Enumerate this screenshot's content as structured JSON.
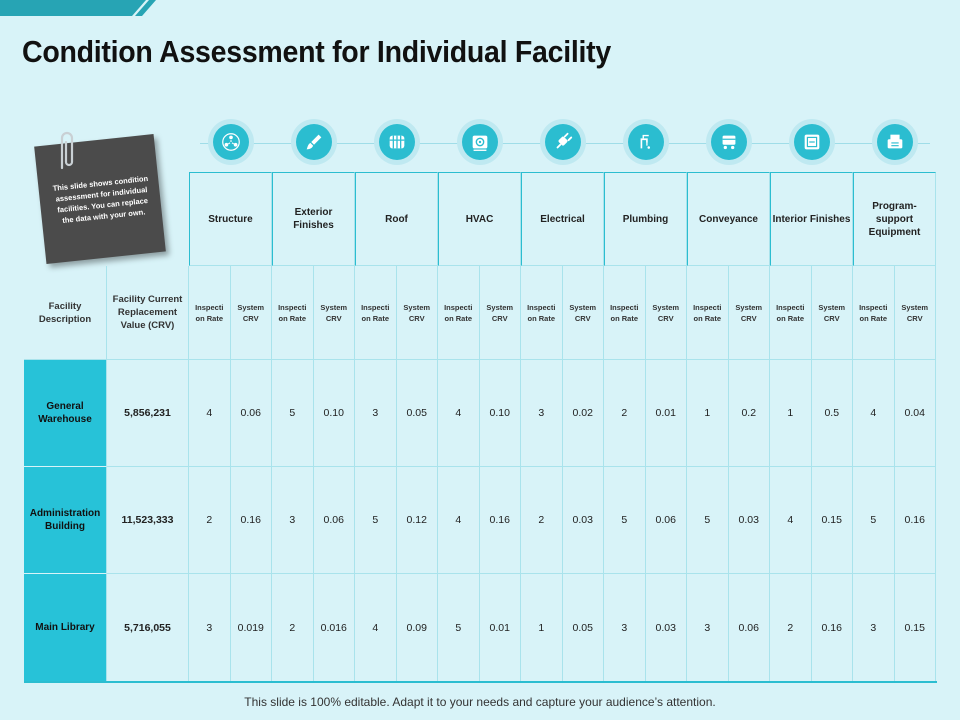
{
  "title": "Condition Assessment for Individual Facility",
  "note_text": "This slide shows condition assessment for individual facilities. You can replace the data with your own.",
  "footer": "This slide is 100% editable. Adapt it to your needs and capture your audience’s attention.",
  "colors": {
    "accent": "#27c2d8",
    "background": "#d8f3f8",
    "note": "#4b4b4b"
  },
  "categories": [
    {
      "label": "Structure",
      "icon": "people-network-icon"
    },
    {
      "label": "Exterior Finishes",
      "icon": "paint-brush-icon"
    },
    {
      "label": "Roof",
      "icon": "roof-tiles-icon"
    },
    {
      "label": "HVAC",
      "icon": "fan-unit-icon"
    },
    {
      "label": "Electrical",
      "icon": "electric-plug-icon"
    },
    {
      "label": "Plumbing",
      "icon": "water-pipe-icon"
    },
    {
      "label": "Conveyance",
      "icon": "conveyor-cart-icon"
    },
    {
      "label": "Interior Finishes",
      "icon": "interior-panel-icon"
    },
    {
      "label": "Program-support Equipment",
      "icon": "equipment-box-icon"
    }
  ],
  "left_headers": {
    "facility": "Facility Description",
    "crv": "Facility Current Replacement Value (CRV)"
  },
  "sub_headers": {
    "inspection": "Inspecti on Rate",
    "system": "System CRV"
  },
  "rows": [
    {
      "name": "General Warehouse",
      "crv": "5,856,231",
      "values": [
        "4",
        "0.06",
        "5",
        "0.10",
        "3",
        "0.05",
        "4",
        "0.10",
        "3",
        "0.02",
        "2",
        "0.01",
        "1",
        "0.2",
        "1",
        "0.5",
        "4",
        "0.04"
      ]
    },
    {
      "name": "Administration Building",
      "crv": "11,523,333",
      "values": [
        "2",
        "0.16",
        "3",
        "0.06",
        "5",
        "0.12",
        "4",
        "0.16",
        "2",
        "0.03",
        "5",
        "0.06",
        "5",
        "0.03",
        "4",
        "0.15",
        "5",
        "0.16"
      ]
    },
    {
      "name": "Main Library",
      "crv": "5,716,055",
      "values": [
        "3",
        "0.019",
        "2",
        "0.016",
        "4",
        "0.09",
        "5",
        "0.01",
        "1",
        "0.05",
        "3",
        "0.03",
        "3",
        "0.06",
        "2",
        "0.16",
        "3",
        "0.15"
      ]
    }
  ]
}
